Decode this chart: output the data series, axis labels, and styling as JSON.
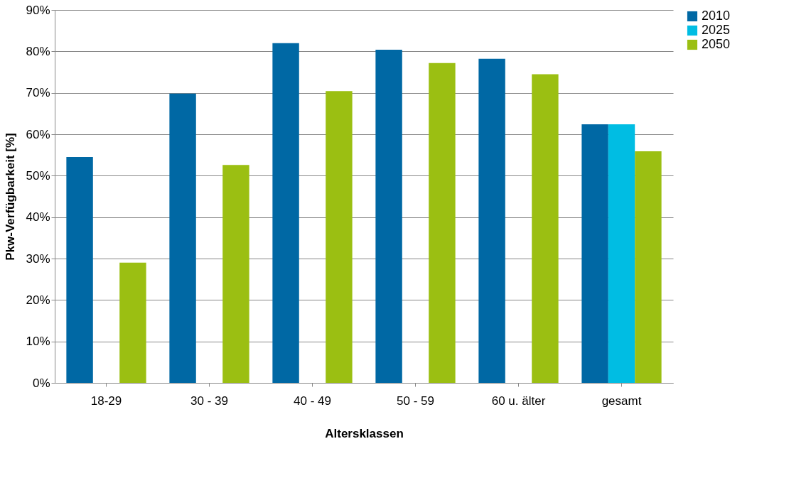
{
  "chart_data": {
    "type": "bar",
    "xlabel": "Altersklassen",
    "ylabel": "Pkw-Verfügbarkeit [%]",
    "categories": [
      "18-29",
      "30 - 39",
      "40 - 49",
      "50 -  59",
      "60 u. älter",
      "gesamt"
    ],
    "series": [
      {
        "name": "2010",
        "color": "#0068a4",
        "values": [
          54.5,
          69.8,
          82.0,
          80.4,
          78.2,
          62.4
        ]
      },
      {
        "name": "2025",
        "color": "#00bde3",
        "values": [
          null,
          null,
          null,
          null,
          null,
          62.4
        ]
      },
      {
        "name": "2050",
        "color": "#9bbf12",
        "values": [
          29.0,
          52.6,
          70.4,
          77.2,
          74.5,
          55.9
        ]
      }
    ],
    "ylim": [
      0,
      90
    ],
    "yticks": [
      {
        "value": 0,
        "label": "0%"
      },
      {
        "value": 10,
        "label": "10%"
      },
      {
        "value": 20,
        "label": "20%"
      },
      {
        "value": 30,
        "label": "30%"
      },
      {
        "value": 40,
        "label": "40%"
      },
      {
        "value": 50,
        "label": "50%"
      },
      {
        "value": 60,
        "label": "60%"
      },
      {
        "value": 70,
        "label": "70%"
      },
      {
        "value": 80,
        "label": "80%"
      },
      {
        "value": 90,
        "label": "90%"
      }
    ],
    "grid": "y",
    "legend": "right"
  }
}
